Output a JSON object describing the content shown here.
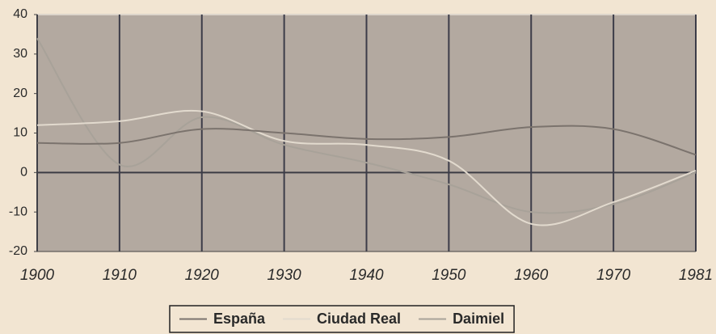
{
  "chart_data": {
    "type": "line",
    "categories": [
      "1900",
      "1910",
      "1920",
      "1930",
      "1940",
      "1950",
      "1960",
      "1970",
      "1981"
    ],
    "series": [
      {
        "name": "España",
        "color": "#7b736d",
        "values": [
          7.5,
          7.5,
          11,
          10,
          8.5,
          9,
          11.5,
          11,
          4.5
        ]
      },
      {
        "name": "Ciudad Real",
        "color": "#e2dace",
        "values": [
          12,
          13,
          15.5,
          8,
          7,
          3,
          -13,
          -7.5,
          0.5
        ]
      },
      {
        "name": "Daimiel",
        "color": "#a8a299",
        "values": [
          34,
          2,
          14,
          7,
          2.5,
          -3,
          -10,
          -8,
          0
        ]
      }
    ],
    "ylim": [
      -20,
      40
    ],
    "yticks": [
      -20,
      -10,
      0,
      10,
      20,
      30,
      40
    ],
    "x_grid": true,
    "zero_line": true,
    "legend": "bottom"
  }
}
